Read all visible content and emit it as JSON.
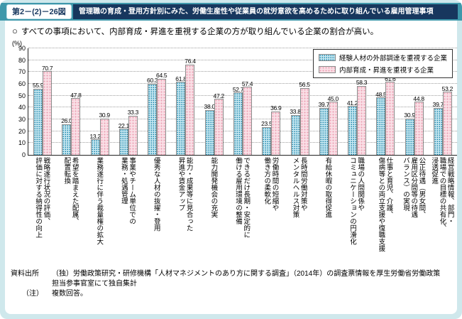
{
  "header": {
    "fig_no": "第2－(2)－26図",
    "title": "管理職の育成・登用方針別にみた、労働生産性や従業員の就労意欲を高めるために取り組んでいる雇用管理事項"
  },
  "lead": {
    "bullet": "○",
    "text": "すべての事項において、内部育成・昇進を重視する企業の方が取り組んでいる企業の割合が高い。"
  },
  "chart_data": {
    "type": "bar",
    "unit": "%",
    "ylabel": "(%)",
    "ylim": [
      0,
      90
    ],
    "ytick_step": 10,
    "grid": true,
    "legend_position": "top-right",
    "bar_value_labels": true,
    "categories": [
      "戦略遂行状況の評価、\n評価に対する納得性の向上",
      "希望を踏まえた配属、\n配置転換",
      "業務遂行に伴う裁量権の拡大",
      "事業やチーム単位での\n業務・処遇管理",
      "優秀な人材の抜擢・登用",
      "能力・成果等に見合った\n昇進や賃金アップ",
      "能力開発機会の充実",
      "できるだけ長期・安定的に\n働ける雇用環境の整備",
      "労働時間の短縮や\n働き方の柔軟化",
      "長時間労働対策や\nメンタルヘルス対策",
      "有給休暇の取得促進",
      "職場の人間関係や\nコミュニケーションの円滑化",
      "仕事と育児、介護、\n傷病等との両立支援や復職支援",
      "公正待遇（男女間、\n雇用区分間等の待遇\nバランス）の実現",
      "経営戦略情報、部門・\n職場での目標の共有化、\n浸透促進"
    ],
    "series": [
      {
        "name": "経験人材の外部調達を重視する企業",
        "values": [
          55.9,
          26.0,
          13.2,
          22.1,
          60.3,
          61.8,
          38.0,
          52.7,
          23.5,
          33.8,
          39.7,
          41.2,
          48.5,
          30.9,
          39.7
        ]
      },
      {
        "name": "内部育成・昇進を重視する企業",
        "values": [
          70.7,
          47.8,
          30.9,
          33.3,
          64.5,
          76.4,
          47.2,
          57.4,
          36.9,
          56.5,
          45.0,
          58.3,
          61.6,
          44.8,
          53.2
        ]
      }
    ],
    "colors": {
      "series_external": "#1f86ac",
      "series_internal": "#eb9db1",
      "header_strip": "#3f98ab",
      "title_box": "#17375e",
      "page_background": "#cfe8ec"
    }
  },
  "footer": {
    "source_label": "資料出所",
    "source_text": "（独）労働政策研究・研修機構「人材マネジメントのあり方に関する調査」（2014年）の調査票情報を厚生労働省労働政策担当参事官室にて独自集計",
    "note_label": "（注）",
    "note_text": "複数回答。"
  }
}
